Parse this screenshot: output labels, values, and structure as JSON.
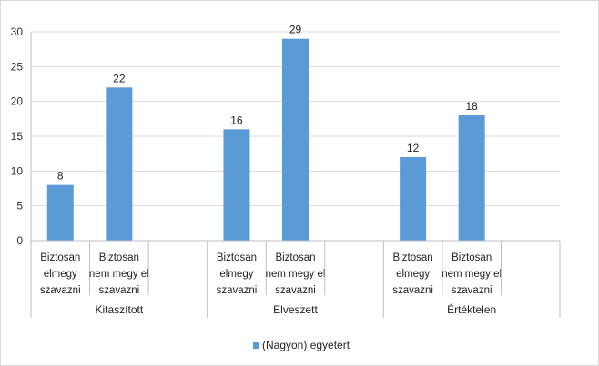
{
  "chart_data": {
    "type": "bar",
    "title": "",
    "xlabel": "",
    "ylabel": "",
    "ylim": [
      0,
      30
    ],
    "yticks": [
      0,
      5,
      10,
      15,
      20,
      25,
      30
    ],
    "grid": true,
    "legend_position": "bottom",
    "groups": [
      {
        "label": "Kitaszított",
        "categories": [
          [
            "Biztosan",
            "elmegy",
            "szavazni"
          ],
          [
            "Biztosan",
            "nem megy el",
            "szavazni"
          ]
        ],
        "values": [
          8,
          22
        ]
      },
      {
        "label": "Elveszett",
        "categories": [
          [
            "Biztosan",
            "elmegy",
            "szavazni"
          ],
          [
            "Biztosan",
            "nem megy el",
            "szavazni"
          ]
        ],
        "values": [
          16,
          29
        ]
      },
      {
        "label": "Értéktelen",
        "categories": [
          [
            "Biztosan",
            "elmegy",
            "szavazni"
          ],
          [
            "Biztosan",
            "nem megy el",
            "szavazni"
          ]
        ],
        "values": [
          12,
          18
        ]
      }
    ],
    "series": [
      {
        "name": "(Nagyon) egyetért",
        "color": "#5b9bd5"
      }
    ]
  }
}
